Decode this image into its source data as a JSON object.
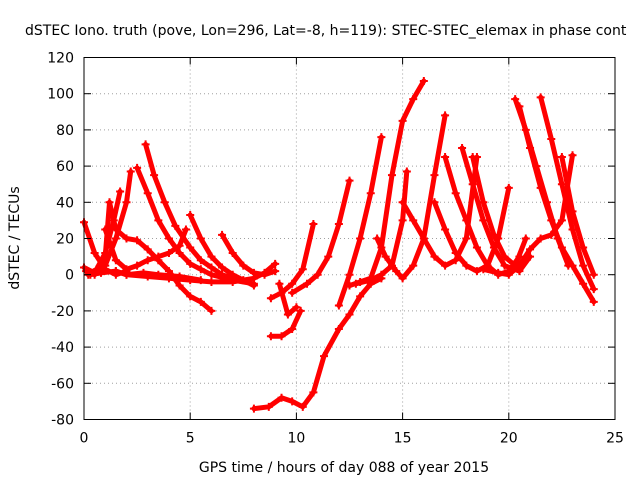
{
  "chart_data": {
    "type": "scatter",
    "title": "dSTEC Iono. truth (pove, Lon=296, Lat=-8, h=119): STEC-STEC_elemax in phase cont",
    "xlabel": "GPS time / hours of day 088 of year 2015",
    "ylabel": "dSTEC  / TECUs",
    "xlim": [
      0,
      25
    ],
    "ylim": [
      -80,
      120
    ],
    "xticks": [
      0,
      5,
      10,
      15,
      20,
      25
    ],
    "yticks": [
      -80,
      -60,
      -40,
      -20,
      0,
      20,
      40,
      60,
      80,
      100,
      120
    ],
    "grid": true,
    "marker": "plus",
    "color": "#ff0000",
    "passes": [
      {
        "x": [
          0.0,
          0.5,
          1.0,
          1.5,
          2.0
        ],
        "y": [
          29,
          12,
          3,
          0,
          2
        ]
      },
      {
        "x": [
          0.0,
          0.5,
          1.0,
          1.4,
          1.7
        ],
        "y": [
          4,
          1,
          12,
          30,
          46
        ]
      },
      {
        "x": [
          0.1,
          0.5,
          1.0,
          1.5,
          2.0,
          2.2
        ],
        "y": [
          2,
          0,
          5,
          20,
          40,
          57
        ]
      },
      {
        "x": [
          0.2,
          0.6,
          1.0,
          1.2,
          1.5,
          2.0,
          2.5,
          3.0,
          3.5,
          4.0,
          4.5,
          5.0,
          5.5,
          6.0
        ],
        "y": [
          0,
          3,
          10,
          40,
          25,
          20,
          19,
          14,
          8,
          2,
          -6,
          -12,
          -15,
          -20
        ]
      },
      {
        "x": [
          1.0,
          1.5,
          2.0,
          2.5,
          3.0,
          3.5,
          4.0,
          4.5,
          4.8
        ],
        "y": [
          25,
          8,
          3,
          5,
          8,
          10,
          12,
          16,
          25
        ]
      },
      {
        "x": [
          1.5,
          2.0,
          3.0,
          4.0,
          5.0,
          6.0,
          7.0,
          8.0,
          8.5,
          9.0
        ],
        "y": [
          2,
          0,
          -1,
          -2,
          -3,
          -4,
          -4,
          -2,
          1,
          6
        ]
      },
      {
        "x": [
          2.5,
          3.0,
          3.5,
          4.0,
          4.5,
          5.0,
          5.5,
          6.0,
          7.0,
          8.0
        ],
        "y": [
          59,
          45,
          30,
          20,
          12,
          6,
          3,
          0,
          -3,
          -5
        ]
      },
      {
        "x": [
          2.9,
          3.3,
          3.8,
          4.3,
          5.0,
          5.5,
          6.0,
          6.5,
          7.0
        ],
        "y": [
          72,
          55,
          40,
          27,
          15,
          8,
          4,
          0,
          -2
        ]
      },
      {
        "x": [
          5.0,
          5.5,
          6.0,
          6.5,
          7.0,
          7.5,
          8.0
        ],
        "y": [
          33,
          20,
          10,
          4,
          0,
          -3,
          -6
        ]
      },
      {
        "x": [
          6.5,
          7.0,
          7.5,
          8.0,
          8.5,
          9.0
        ],
        "y": [
          22,
          12,
          5,
          1,
          0,
          2
        ]
      },
      {
        "x": [
          8.8,
          9.3,
          9.8,
          10.3,
          10.8
        ],
        "y": [
          -13,
          -10,
          -5,
          3,
          28
        ]
      },
      {
        "x": [
          8.8,
          9.3,
          9.8,
          10.2
        ],
        "y": [
          -34,
          -34,
          -30,
          -20
        ]
      },
      {
        "x": [
          9.2,
          9.6,
          10.0
        ],
        "y": [
          -5,
          -22,
          -18
        ]
      },
      {
        "x": [
          8.0,
          8.7,
          9.3,
          9.8,
          10.3,
          10.8,
          11.3,
          12.0,
          12.5,
          13.0,
          13.5,
          14.0
        ],
        "y": [
          -74,
          -73,
          -68,
          -70,
          -73,
          -65,
          -45,
          -30,
          -22,
          -12,
          -5,
          -2
        ]
      },
      {
        "x": [
          9.8,
          10.5,
          11.0,
          11.5,
          12.0,
          12.5
        ],
        "y": [
          -10,
          -5,
          0,
          10,
          28,
          52
        ]
      },
      {
        "x": [
          12.0,
          12.5,
          13.0,
          13.5,
          14.0
        ],
        "y": [
          -17,
          0,
          20,
          45,
          76
        ]
      },
      {
        "x": [
          12.5,
          13.0,
          13.5,
          14.0,
          14.5,
          15.0,
          15.5,
          16.0
        ],
        "y": [
          -6,
          -4,
          -2,
          15,
          55,
          85,
          97,
          107
        ]
      },
      {
        "x": [
          12.8,
          13.5,
          14.0,
          14.5,
          15.0,
          15.2
        ],
        "y": [
          -5,
          -3,
          0,
          5,
          30,
          57
        ]
      },
      {
        "x": [
          13.8,
          14.2,
          14.7,
          15.0,
          15.5,
          16.0,
          16.5,
          17.0
        ],
        "y": [
          20,
          10,
          2,
          -2,
          5,
          20,
          55,
          88
        ]
      },
      {
        "x": [
          15.0,
          15.5,
          16.0,
          16.5,
          17.0,
          17.5,
          18.0,
          18.5
        ],
        "y": [
          40,
          30,
          20,
          10,
          5,
          8,
          20,
          65
        ]
      },
      {
        "x": [
          16.5,
          17.0,
          17.5,
          18.0,
          18.5,
          19.0,
          19.5,
          20.0
        ],
        "y": [
          40,
          25,
          12,
          5,
          2,
          5,
          20,
          48
        ]
      },
      {
        "x": [
          17.0,
          17.5,
          18.0,
          18.5,
          19.0,
          19.5,
          20.0,
          20.5
        ],
        "y": [
          65,
          45,
          30,
          15,
          5,
          0,
          2,
          10
        ]
      },
      {
        "x": [
          17.8,
          18.3,
          18.8,
          19.3,
          19.8,
          20.5,
          21.0
        ],
        "y": [
          70,
          50,
          30,
          15,
          5,
          2,
          10
        ]
      },
      {
        "x": [
          18.3,
          18.8,
          19.3,
          19.8,
          20.3,
          20.8
        ],
        "y": [
          65,
          40,
          22,
          10,
          5,
          20
        ]
      },
      {
        "x": [
          18.8,
          19.5,
          20.0,
          20.5,
          21.0,
          21.5,
          22.0,
          22.5,
          23.0
        ],
        "y": [
          3,
          1,
          0,
          5,
          14,
          20,
          22,
          30,
          66
        ]
      },
      {
        "x": [
          20.3,
          20.8,
          21.3,
          21.8,
          22.3,
          22.8
        ],
        "y": [
          97,
          80,
          60,
          40,
          20,
          5
        ]
      },
      {
        "x": [
          20.5,
          21.0,
          21.5,
          22.0,
          22.5,
          23.0,
          23.5,
          24.0
        ],
        "y": [
          93,
          70,
          48,
          30,
          15,
          5,
          -5,
          -15
        ]
      },
      {
        "x": [
          21.5,
          22.0,
          22.5,
          23.0,
          23.5,
          24.0
        ],
        "y": [
          98,
          75,
          50,
          25,
          5,
          -8
        ]
      },
      {
        "x": [
          22.5,
          23.0,
          23.5,
          24.0
        ],
        "y": [
          65,
          35,
          15,
          0
        ]
      },
      {
        "x": [
          0.3,
          0.8,
          1.5,
          2.0,
          2.8,
          3.5,
          4.5,
          5.5
        ],
        "y": [
          0,
          1,
          2,
          0,
          1,
          0,
          -1,
          -3
        ]
      }
    ]
  }
}
